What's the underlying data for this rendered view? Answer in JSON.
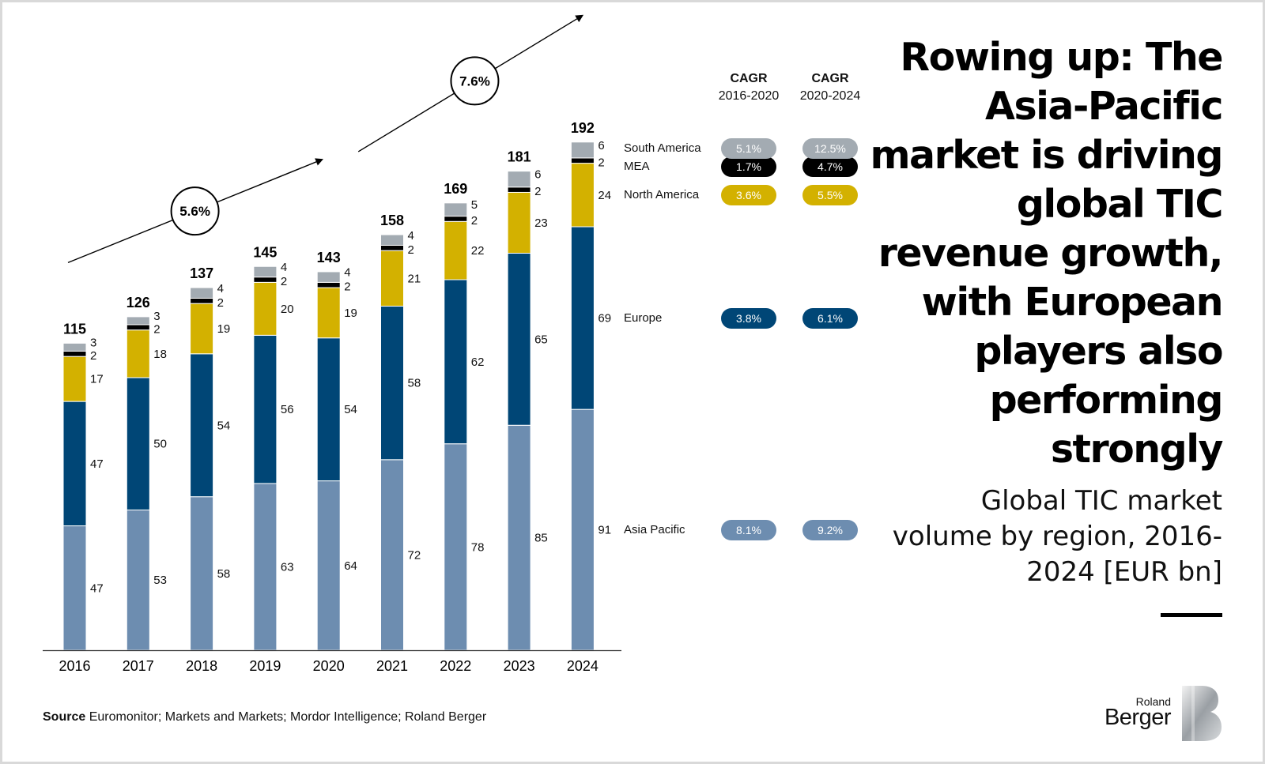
{
  "title": "Rowing up: The Asia-Pacific market is driving global TIC revenue growth, with European players also performing strongly",
  "subtitle": "Global TIC market volume by region, 2016-2024 [EUR bn]",
  "source_label": "Source",
  "source_text": "Euromonitor; Markets and Markets; Mordor Intelligence; Roland Berger",
  "logo": {
    "line1": "Roland",
    "line2": "Berger",
    "mark_icon": "roland-berger-b-mark-icon"
  },
  "cagr_headers": [
    {
      "title": "CAGR",
      "period": "2016-2020"
    },
    {
      "title": "CAGR",
      "period": "2020-2024"
    }
  ],
  "chart_data": {
    "type": "bar",
    "stacked": true,
    "categories": [
      "2016",
      "2017",
      "2018",
      "2019",
      "2020",
      "2021",
      "2022",
      "2023",
      "2024"
    ],
    "series": [
      {
        "name": "Asia Pacific",
        "color": "#6d8db0",
        "values": [
          47,
          53,
          58,
          63,
          64,
          72,
          78,
          85,
          91
        ],
        "cagr": [
          "8.1%",
          "9.2%"
        ]
      },
      {
        "name": "Europe",
        "color": "#004676",
        "values": [
          47,
          50,
          54,
          56,
          54,
          58,
          62,
          65,
          69
        ],
        "cagr": [
          "3.8%",
          "6.1%"
        ]
      },
      {
        "name": "North America",
        "color": "#d3b100",
        "values": [
          17,
          18,
          19,
          20,
          19,
          21,
          22,
          23,
          24
        ],
        "cagr": [
          "3.6%",
          "5.5%"
        ]
      },
      {
        "name": "MEA",
        "color": "#000000",
        "values": [
          2,
          2,
          2,
          2,
          2,
          2,
          2,
          2,
          2
        ],
        "cagr": [
          "1.7%",
          "4.7%"
        ]
      },
      {
        "name": "South America",
        "color": "#a3abb2",
        "values": [
          3,
          3,
          4,
          4,
          4,
          4,
          5,
          6,
          6
        ],
        "cagr": [
          "5.1%",
          "12.5%"
        ]
      }
    ],
    "totals": [
      "115",
      "126",
      "137",
      "145",
      "143",
      "158",
      "169",
      "181",
      "192"
    ],
    "growth_annotations": [
      {
        "label": "5.6%",
        "from": "2016",
        "to": "2020"
      },
      {
        "label": "7.6%",
        "from": "2020",
        "to": "2024"
      }
    ],
    "legend_placement": "right",
    "grid": false
  }
}
